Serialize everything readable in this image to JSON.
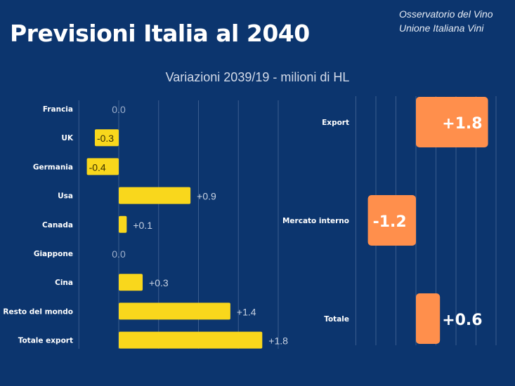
{
  "header": {
    "title": "Previsioni Italia al 2040",
    "source_line1": "Osservatorio del Vino",
    "source_line2": "Unione Italiana Vini"
  },
  "subtitle": "Variazioni 2039/19 - milioni di HL",
  "colors": {
    "background": "#0c356e",
    "export_bars": "#f9d71c",
    "summary_bars": "#ff8f4c"
  },
  "chart_data": [
    {
      "type": "bar",
      "orientation": "horizontal",
      "title": "Variazioni 2039/19 - milioni di HL",
      "categories": [
        "Francia",
        "UK",
        "Germania",
        "Usa",
        "Canada",
        "Giappone",
        "Cina",
        "Resto del mondo",
        "Totale export"
      ],
      "values": [
        0.0,
        -0.3,
        -0.4,
        0.9,
        0.1,
        0.0,
        0.3,
        1.4,
        1.8
      ],
      "labels": [
        "0.0",
        "-0.3",
        "-0.4",
        "+0.9",
        "+0.1",
        "0.0",
        "+0.3",
        "+1.4",
        "+1.8"
      ],
      "xlim": [
        -0.5,
        2.0
      ],
      "grid": true
    },
    {
      "type": "bar",
      "orientation": "horizontal",
      "categories": [
        "Export",
        "Mercato interno",
        "Totale"
      ],
      "values": [
        1.8,
        -1.2,
        0.6
      ],
      "labels": [
        "+1.8",
        "-1.2",
        "+0.6"
      ],
      "xlim": [
        -1.5,
        2.0
      ],
      "grid": true
    }
  ]
}
